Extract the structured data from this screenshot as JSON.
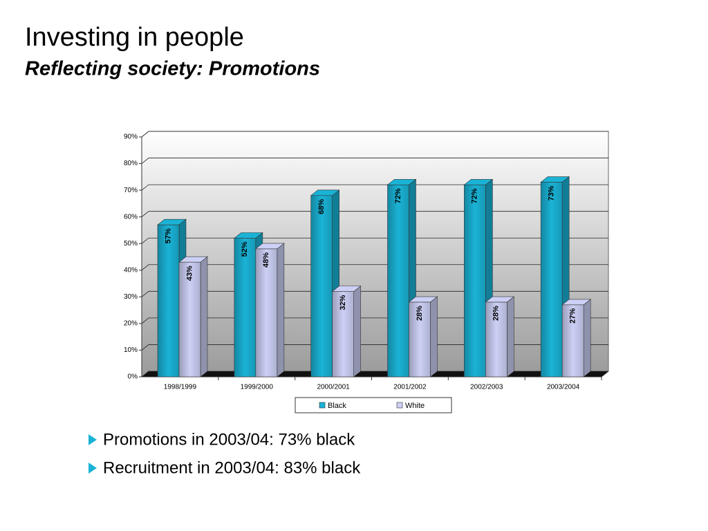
{
  "title": "Investing in people",
  "subtitle": "Reflecting society: Promotions",
  "bullets": [
    "Promotions in 2003/04: 73% black",
    "Recruitment in 2003/04: 83% black"
  ],
  "chart_data": {
    "type": "bar3d",
    "categories": [
      "1998/1999",
      "1999/2000",
      "2000/2001",
      "2001/2002",
      "2002/2003",
      "2003/2004"
    ],
    "series": [
      {
        "name": "Black",
        "color": "#1ab3d6",
        "values": [
          57,
          52,
          68,
          72,
          72,
          73
        ],
        "value_labels": [
          "57%",
          "52%",
          "68%",
          "72%",
          "72%",
          "73%"
        ]
      },
      {
        "name": "White",
        "color": "#ccd0f5",
        "values": [
          43,
          48,
          32,
          28,
          28,
          27
        ],
        "value_labels": [
          "43%",
          "48%",
          "32%",
          "28%",
          "28%",
          "27%"
        ]
      }
    ],
    "ylim": [
      0,
      90
    ],
    "yticks": [
      {
        "value": 0,
        "label": "0%"
      },
      {
        "value": 10,
        "label": "10%"
      },
      {
        "value": 20,
        "label": "20%"
      },
      {
        "value": 30,
        "label": "30%"
      },
      {
        "value": 40,
        "label": "40%"
      },
      {
        "value": 50,
        "label": "50%"
      },
      {
        "value": 60,
        "label": "60%"
      },
      {
        "value": 70,
        "label": "70%"
      },
      {
        "value": 80,
        "label": "80%"
      },
      {
        "value": 90,
        "label": "90%"
      }
    ],
    "grid": true,
    "legend": "bottom"
  }
}
